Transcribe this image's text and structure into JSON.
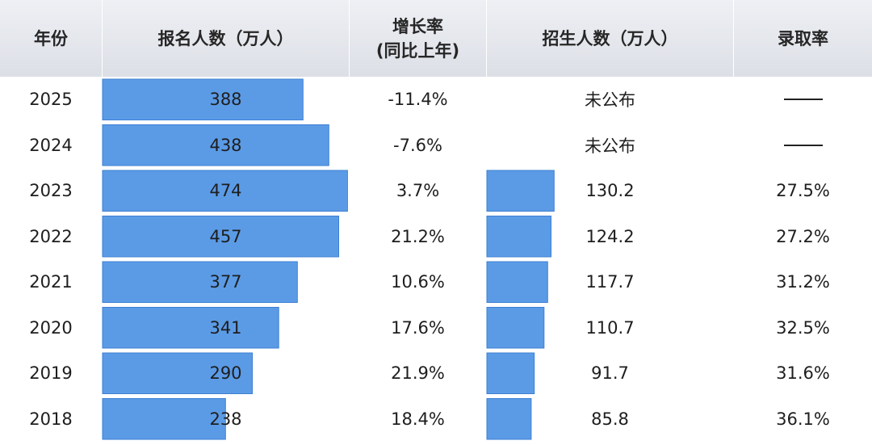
{
  "headers": {
    "year": "年份",
    "applicants": "报名人数（万人）",
    "growth_line1": "增长率",
    "growth_line2": "(同比上年)",
    "admitted": "招生人数（万人）",
    "rate": "录取率"
  },
  "colors": {
    "bar": "#5b9be6",
    "bar_edge": "#3d7fd3",
    "header_bg": "#dfe2e8"
  },
  "chart_data": {
    "type": "table",
    "columns": [
      "年份",
      "报名人数（万人）",
      "增长率(同比上年)",
      "招生人数（万人）",
      "录取率"
    ],
    "rows": [
      {
        "year": "2025",
        "applicants": 388,
        "growth": "-11.4%",
        "admitted": null,
        "admitted_text": "未公布",
        "rate": "——"
      },
      {
        "year": "2024",
        "applicants": 438,
        "growth": "-7.6%",
        "admitted": null,
        "admitted_text": "未公布",
        "rate": "——"
      },
      {
        "year": "2023",
        "applicants": 474,
        "growth": "3.7%",
        "admitted": 130.2,
        "admitted_text": "130.2",
        "rate": "27.5%"
      },
      {
        "year": "2022",
        "applicants": 457,
        "growth": "21.2%",
        "admitted": 124.2,
        "admitted_text": "124.2",
        "rate": "27.2%"
      },
      {
        "year": "2021",
        "applicants": 377,
        "growth": "10.6%",
        "admitted": 117.7,
        "admitted_text": "117.7",
        "rate": "31.2%"
      },
      {
        "year": "2020",
        "applicants": 341,
        "growth": "17.6%",
        "admitted": 110.7,
        "admitted_text": "110.7",
        "rate": "32.5%"
      },
      {
        "year": "2019",
        "applicants": 290,
        "growth": "21.9%",
        "admitted": 91.7,
        "admitted_text": "91.7",
        "rate": "31.6%"
      },
      {
        "year": "2018",
        "applicants": 238,
        "growth": "18.4%",
        "admitted": 85.8,
        "admitted_text": "85.8",
        "rate": "36.1%"
      }
    ]
  }
}
